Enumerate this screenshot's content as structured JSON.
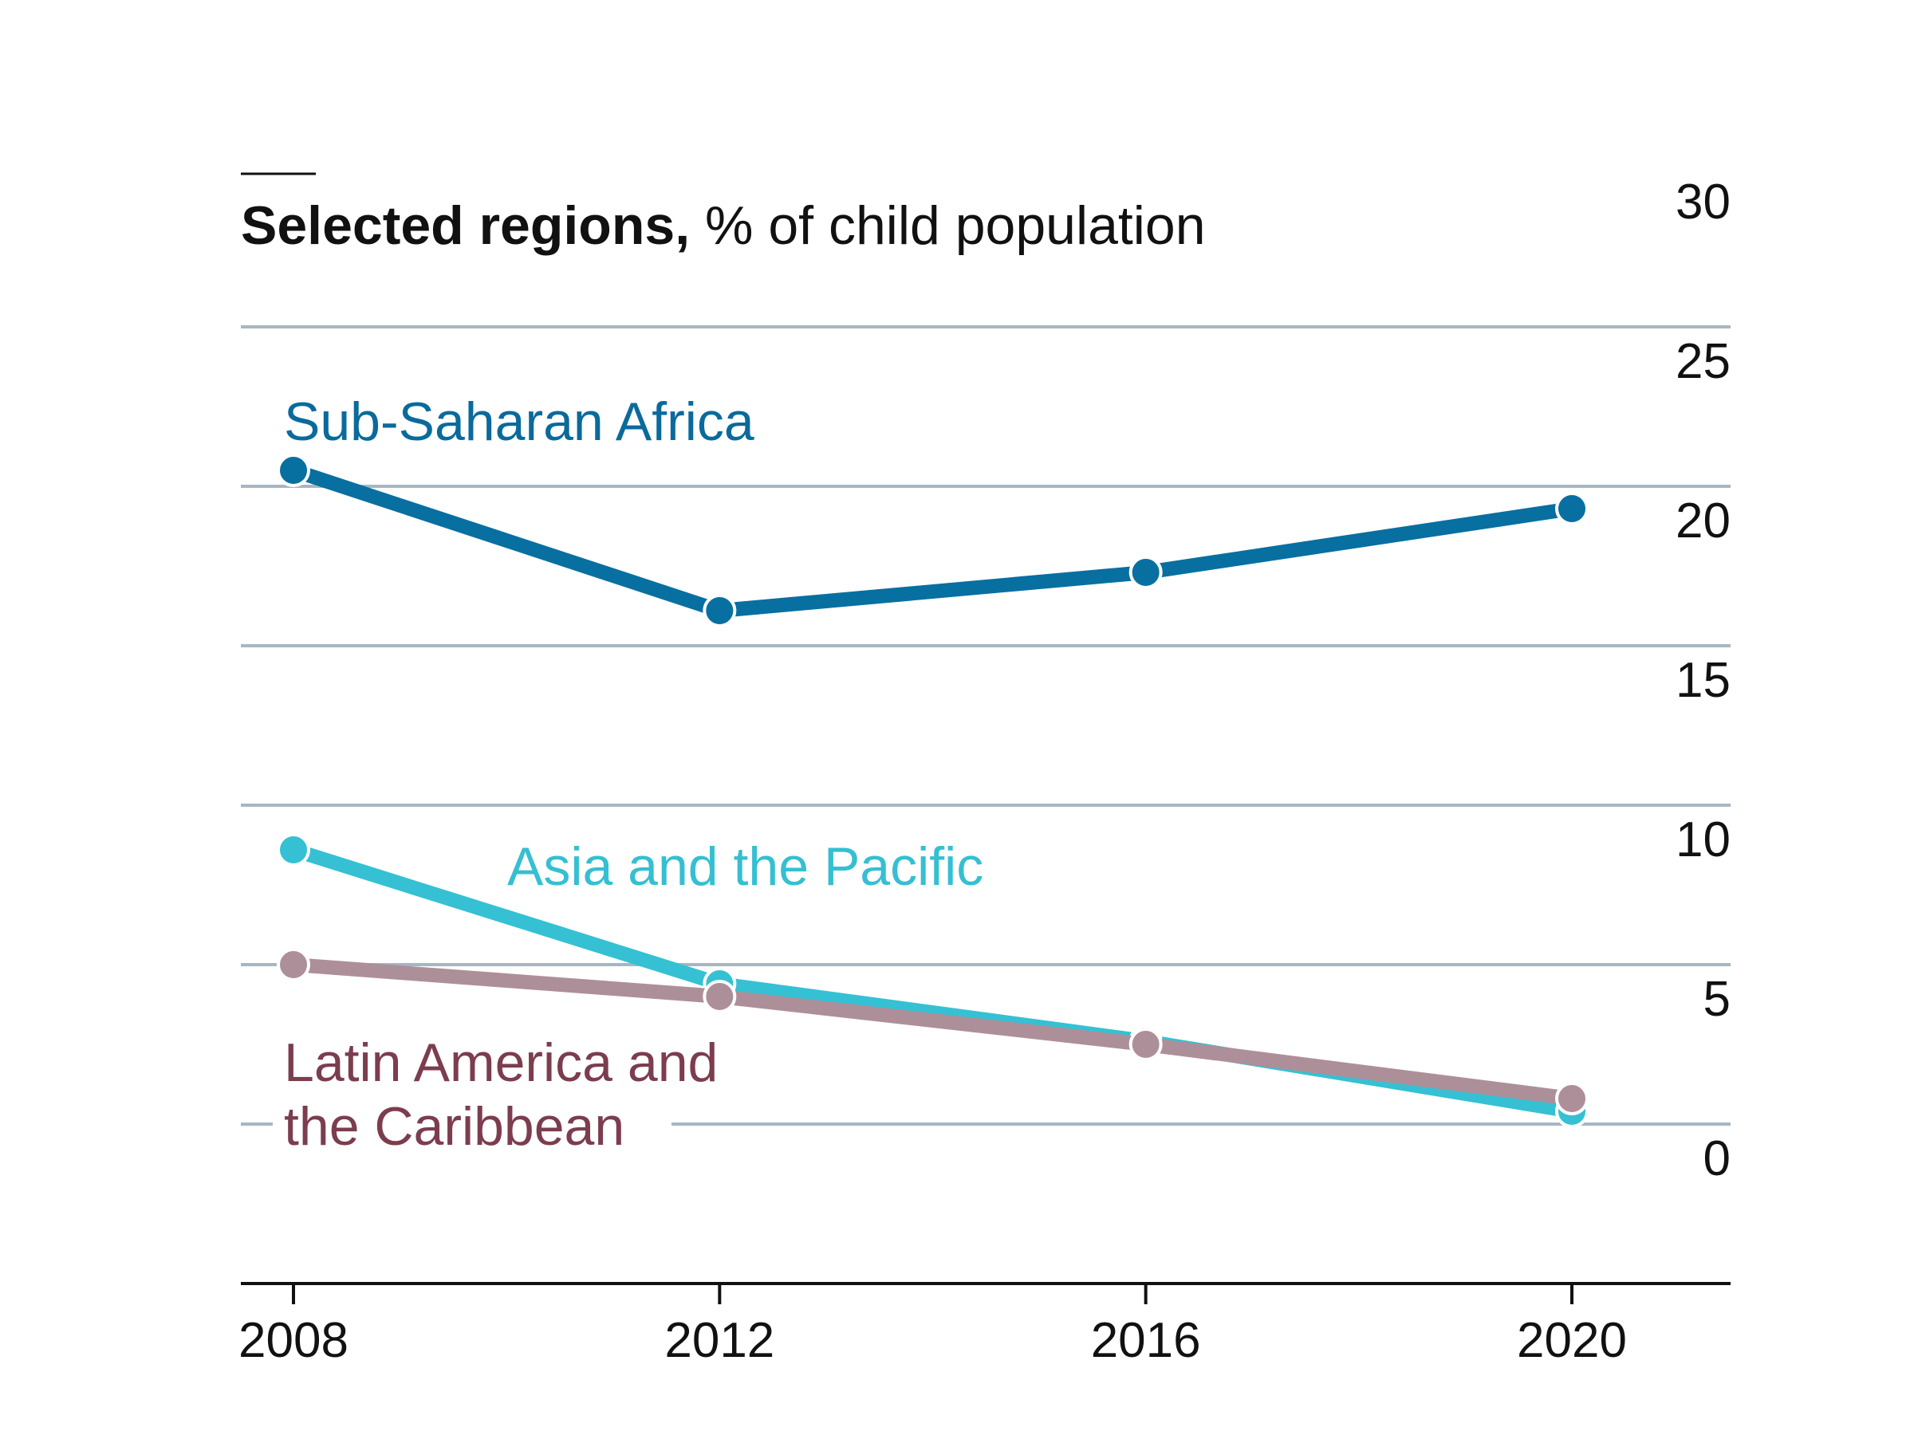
{
  "chart_data": {
    "type": "line",
    "title_bold": "Selected regions,",
    "title_rest": " % of child population",
    "xlabel": "",
    "ylabel": "",
    "x": [
      2008,
      2012,
      2016,
      2020
    ],
    "x_tick_labels": [
      "2008",
      "2012",
      "2016",
      "2020"
    ],
    "y_ticks": [
      0,
      5,
      10,
      15,
      20,
      25,
      30
    ],
    "y_tick_labels": [
      "0",
      "5",
      "10",
      "15",
      "20",
      "25",
      "30"
    ],
    "ylim": [
      -5,
      30
    ],
    "grid": true,
    "series": [
      {
        "name": "Sub-Saharan Africa",
        "label_lines": [
          "Sub-Saharan Africa"
        ],
        "color": "#086fa1",
        "label_color": "#0a6a9c",
        "values": [
          20.5,
          16.1,
          17.3,
          19.3
        ]
      },
      {
        "name": "Asia and the Pacific",
        "label_lines": [
          "Asia and the Pacific"
        ],
        "color": "#35c1d3",
        "label_color": "#35bfd2",
        "values": [
          8.6,
          4.4,
          2.6,
          0.4
        ]
      },
      {
        "name": "Latin America and the Caribbean",
        "label_lines": [
          "Latin America and",
          "the Caribbean"
        ],
        "color": "#ad8f9a",
        "label_color": "#7c3d4e",
        "values": [
          5.0,
          4.0,
          2.5,
          0.8
        ]
      }
    ]
  }
}
